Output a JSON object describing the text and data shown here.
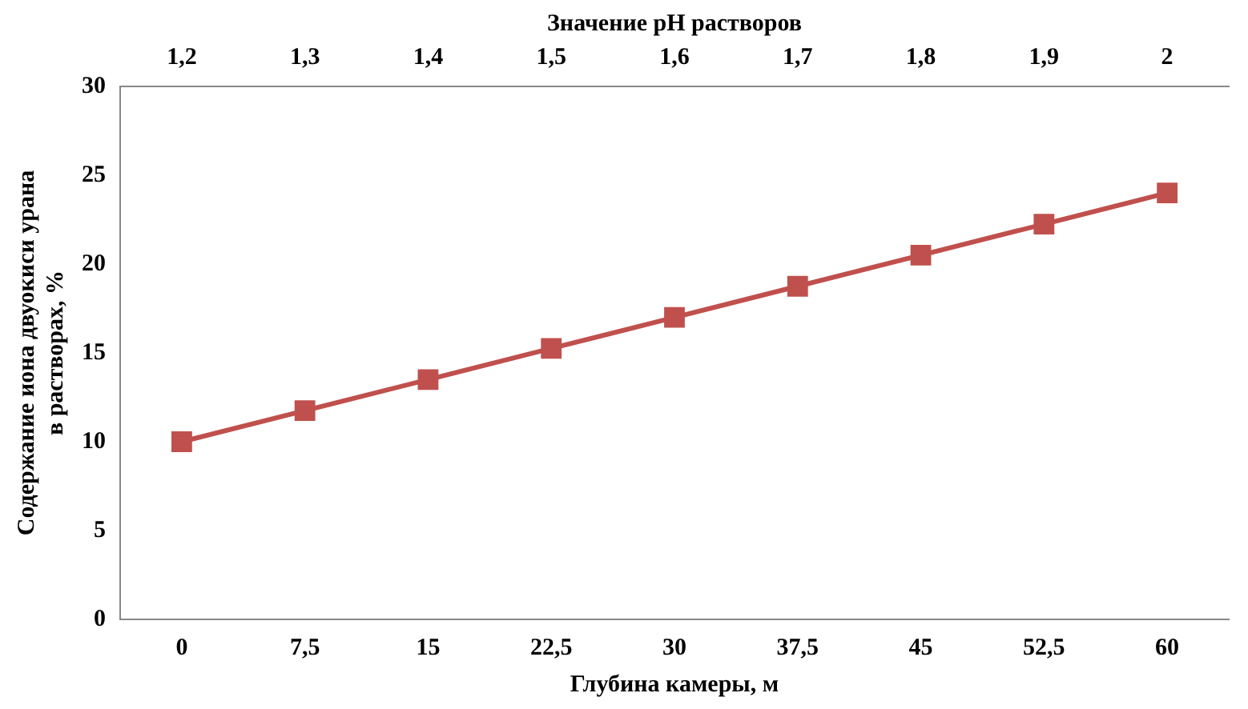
{
  "chart_data": {
    "type": "line",
    "xlabel": "Глубина камеры, м",
    "x2label": "Значение pH растворов",
    "ylabel": "Содержание иона двуокиси урана\nв растворах, %",
    "x": [
      0,
      7.5,
      15,
      22.5,
      30,
      37.5,
      45,
      52.5,
      60
    ],
    "series": [
      {
        "color": "#c0504d",
        "values": [
          10,
          11.75,
          13.5,
          15.25,
          17,
          18.75,
          20.5,
          22.25,
          24
        ]
      }
    ],
    "xlim": [
      -3.75,
      63.75
    ],
    "xticks": [
      0,
      {
        "value": 7.5,
        "label": "7,5"
      },
      15,
      {
        "value": 22.5,
        "label": "22,5"
      },
      30,
      {
        "value": 37.5,
        "label": "37,5"
      },
      45,
      {
        "value": 52.5,
        "label": "52,5"
      },
      60
    ],
    "x2lim": [
      1.15,
      2.05
    ],
    "x2ticks": [
      {
        "value": 1.2,
        "label": "1,2"
      },
      {
        "value": 1.3,
        "label": "1,3"
      },
      {
        "value": 1.4,
        "label": "1,4"
      },
      {
        "value": 1.5,
        "label": "1,5"
      },
      {
        "value": 1.6,
        "label": "1,6"
      },
      {
        "value": 1.7,
        "label": "1,7"
      },
      {
        "value": 1.8,
        "label": "1,8"
      },
      {
        "value": 1.9,
        "label": "1,9"
      },
      2
    ],
    "ylim": [
      0,
      30
    ],
    "yticks": [
      0,
      5,
      10,
      15,
      20,
      25,
      30
    ],
    "grid": false,
    "legend": false,
    "marker": "square",
    "line_style": "solid"
  }
}
